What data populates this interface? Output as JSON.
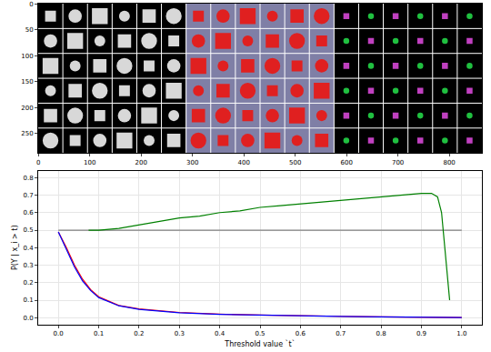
{
  "chart_data": [
    {
      "type": "image",
      "xlim": [
        -0.5,
        863.5
      ],
      "ylim": [
        287.5,
        -0.5
      ],
      "xticks": [
        0,
        100,
        200,
        300,
        400,
        500,
        600,
        700,
        800
      ],
      "yticks": [
        0,
        50,
        100,
        150,
        200,
        250
      ],
      "grid": false
    },
    {
      "type": "line",
      "x_label": "Threshold value `t`",
      "y_label": "P(Y | x_i > t)",
      "xlim": [
        -0.05,
        1.05
      ],
      "ylim": [
        -0.04,
        0.84
      ],
      "xticks": [
        {
          "value": 0,
          "label": "0.0"
        },
        {
          "value": 0.1,
          "label": "0.1"
        },
        {
          "value": 0.2,
          "label": "0.2"
        },
        {
          "value": 0.3,
          "label": "0.3"
        },
        {
          "value": 0.4,
          "label": "0.4"
        },
        {
          "value": 0.5,
          "label": "0.5"
        },
        {
          "value": 0.6,
          "label": "0.6"
        },
        {
          "value": 0.7,
          "label": "0.7"
        },
        {
          "value": 0.8,
          "label": "0.8"
        },
        {
          "value": 0.9,
          "label": "0.9"
        },
        {
          "value": 1,
          "label": "1.0"
        }
      ],
      "yticks": [
        {
          "value": 0,
          "label": "0.0"
        },
        {
          "value": 0.1,
          "label": "0.1"
        },
        {
          "value": 0.2,
          "label": "0.2"
        },
        {
          "value": 0.3,
          "label": "0.3"
        },
        {
          "value": 0.4,
          "label": "0.4"
        },
        {
          "value": 0.5,
          "label": "0.5"
        },
        {
          "value": 0.6,
          "label": "0.6"
        },
        {
          "value": 0.7,
          "label": "0.7"
        },
        {
          "value": 0.8,
          "label": "0.8"
        }
      ],
      "grid": true,
      "series": [
        {
          "color": "gray",
          "x": [
            0,
            1
          ],
          "values": [
            0.5,
            0.5
          ]
        },
        {
          "color": "green",
          "x": [
            0.075,
            0.1,
            0.15,
            0.2,
            0.25,
            0.3,
            0.35,
            0.4,
            0.45,
            0.5,
            0.55,
            0.6,
            0.65,
            0.7,
            0.75,
            0.8,
            0.85,
            0.9,
            0.925,
            0.94,
            0.95,
            0.96,
            0.97
          ],
          "values": [
            0.5,
            0.5,
            0.51,
            0.53,
            0.55,
            0.57,
            0.58,
            0.6,
            0.61,
            0.63,
            0.64,
            0.65,
            0.66,
            0.67,
            0.68,
            0.69,
            0.7,
            0.71,
            0.71,
            0.69,
            0.6,
            0.35,
            0.1
          ]
        },
        {
          "color": "red",
          "x": [
            0,
            0.02,
            0.04,
            0.06,
            0.08,
            0.1,
            0.15,
            0.2,
            0.3,
            0.4,
            0.5,
            0.6,
            0.7,
            0.8,
            0.9,
            1.0
          ],
          "values": [
            0.49,
            0.4,
            0.3,
            0.22,
            0.16,
            0.12,
            0.07,
            0.05,
            0.03,
            0.02,
            0.015,
            0.01,
            0.008,
            0.005,
            0.003,
            0.001
          ]
        },
        {
          "color": "blue",
          "x": [
            0,
            0.02,
            0.04,
            0.06,
            0.08,
            0.1,
            0.15,
            0.2,
            0.3,
            0.4,
            0.5,
            0.6,
            0.7,
            0.8,
            0.9,
            1.0
          ],
          "values": [
            0.49,
            0.39,
            0.29,
            0.21,
            0.155,
            0.115,
            0.068,
            0.048,
            0.028,
            0.019,
            0.014,
            0.01,
            0.007,
            0.005,
            0.003,
            0.001
          ]
        }
      ]
    }
  ]
}
